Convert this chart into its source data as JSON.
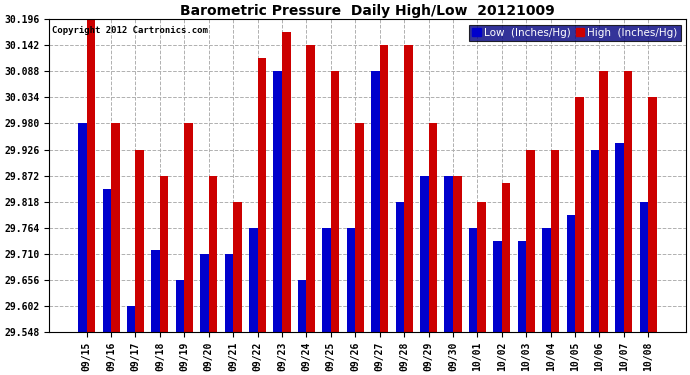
{
  "title": "Barometric Pressure  Daily High/Low  20121009",
  "copyright": "Copyright 2012 Cartronics.com",
  "ylim": [
    29.548,
    30.196
  ],
  "yticks": [
    29.548,
    29.602,
    29.656,
    29.71,
    29.764,
    29.818,
    29.872,
    29.926,
    29.98,
    30.034,
    30.088,
    30.142,
    30.196
  ],
  "background_color": "#ffffff",
  "grid_color": "#b0b0b0",
  "low_color": "#0000cc",
  "high_color": "#cc0000",
  "categories": [
    "09/15",
    "09/16",
    "09/17",
    "09/18",
    "09/19",
    "09/20",
    "09/21",
    "09/22",
    "09/23",
    "09/24",
    "09/25",
    "09/26",
    "09/27",
    "09/28",
    "09/29",
    "09/30",
    "10/01",
    "10/02",
    "10/03",
    "10/04",
    "10/05",
    "10/06",
    "10/07",
    "10/08"
  ],
  "low": [
    29.98,
    29.845,
    29.602,
    29.718,
    29.656,
    29.71,
    29.71,
    29.764,
    30.088,
    29.656,
    29.764,
    29.764,
    30.088,
    29.818,
    29.872,
    29.872,
    29.764,
    29.737,
    29.737,
    29.764,
    29.79,
    29.926,
    29.94,
    29.818
  ],
  "high": [
    30.196,
    29.98,
    29.926,
    29.872,
    29.98,
    29.872,
    29.818,
    30.115,
    30.169,
    30.142,
    30.088,
    29.98,
    30.142,
    30.142,
    29.98,
    29.872,
    29.818,
    29.856,
    29.926,
    29.926,
    30.034,
    30.088,
    30.088,
    30.034
  ],
  "bar_width": 0.35,
  "title_fontsize": 10,
  "tick_fontsize": 7,
  "legend_fontsize": 7.5
}
